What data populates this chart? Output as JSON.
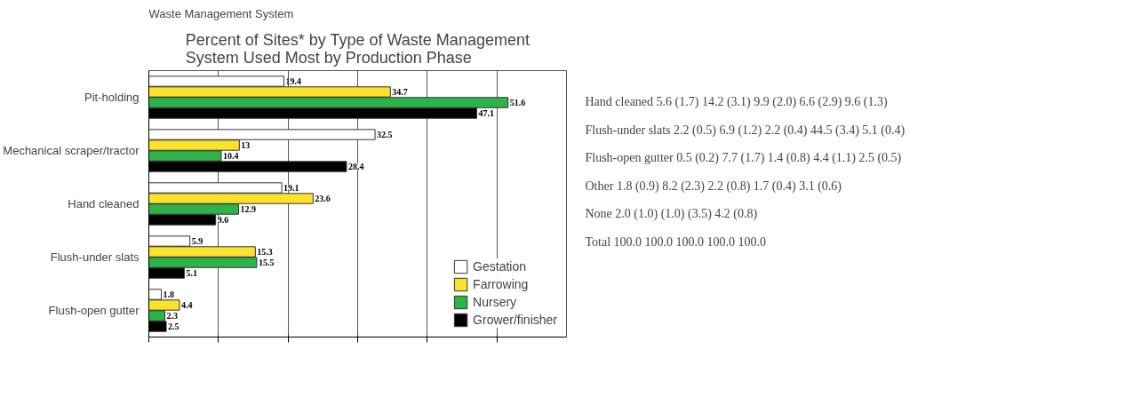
{
  "chart_data": [
    {
      "type": "bar",
      "orientation": "horizontal",
      "title": "Percent of Sites* by Type of Waste Management System Used Most by Production Phase",
      "ylabel": "Waste Management System",
      "categories": [
        "Pit-holding",
        "Mechanical scraper/tractor",
        "Hand cleaned",
        "Flush-under slats",
        "Flush-open gutter"
      ],
      "series": [
        {
          "name": "Gestation",
          "color": "#ffffff",
          "values": [
            19.4,
            32.5,
            19.1,
            5.9,
            1.8
          ]
        },
        {
          "name": "Farrowing",
          "color": "#fde12d",
          "values": [
            34.7,
            13,
            23.6,
            15.3,
            4.4
          ]
        },
        {
          "name": "Nursery",
          "color": "#2db34a",
          "values": [
            51.6,
            10.4,
            12.9,
            15.5,
            2.3
          ]
        },
        {
          "name": "Grower/finisher",
          "color": "#000000",
          "values": [
            47.1,
            28.4,
            9.6,
            5.1,
            2.5
          ]
        }
      ],
      "xlim": [
        0,
        60
      ],
      "xticks": [
        {
          "value": 0,
          "label": null
        },
        {
          "value": 10,
          "label": null
        },
        {
          "value": 20,
          "label": null
        },
        {
          "value": 30,
          "label": null
        },
        {
          "value": 40,
          "label": null
        },
        {
          "value": 50,
          "label": null
        }
      ],
      "grid": "x",
      "legend": "bottom right",
      "data_labels": true
    },
    {
      "type": "other",
      "annotations": [
        "Hand cleaned 5.6 (1.7) 14.2 (3.1) 9.9 (2.0) 6.6 (2.9) 9.6 (1.3)",
        "Flush-under slats 2.2 (0.5) 6.9 (1.2) 2.2 (0.4) 44.5 (3.4) 5.1 (0.4)",
        "Flush-open gutter 0.5 (0.2) 7.7 (1.7) 1.4 (0.8) 4.4 (1.1) 2.5 (0.5)",
        "Other 1.8 (0.9) 8.2 (2.3) 2.2 (0.8) 1.7 (0.4) 3.1 (0.6)",
        "None 2.0 (1.0) (1.0) (3.5) 4.2 (0.8)",
        "Total 100.0 100.0 100.0 100.0 100.0"
      ]
    }
  ]
}
